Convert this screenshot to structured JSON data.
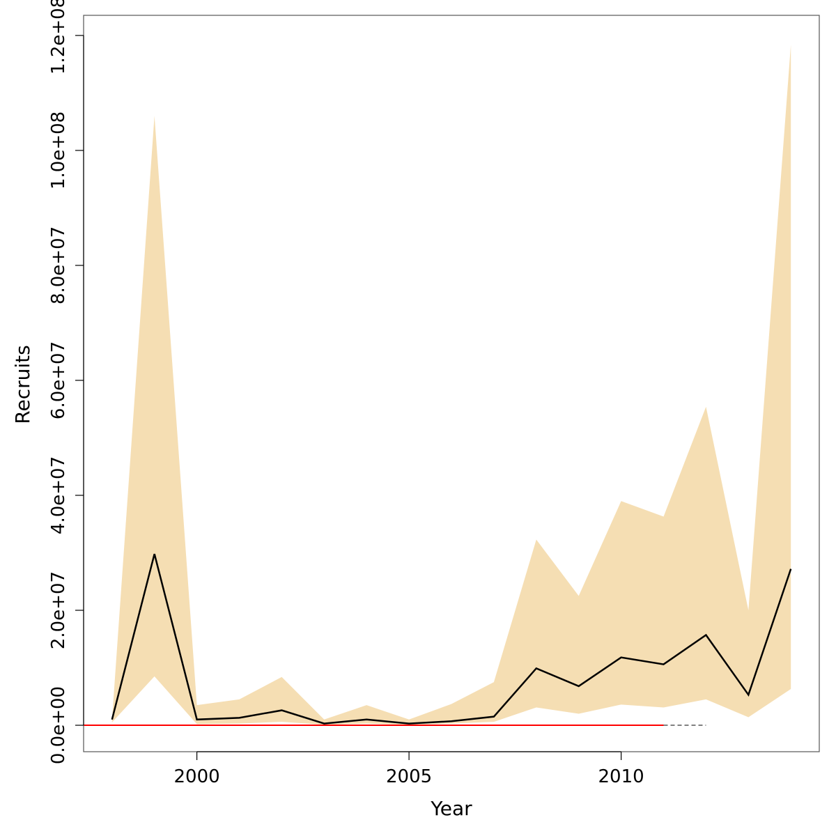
{
  "chart_data": {
    "type": "line",
    "title": "",
    "xlabel": "Year",
    "ylabel": "Recruits",
    "xlim": [
      1997.33,
      2014.67
    ],
    "ylim": [
      -4600000,
      123500000
    ],
    "x_ticks": [
      2000,
      2005,
      2010
    ],
    "x_tick_labels": [
      "2000",
      "2005",
      "2010"
    ],
    "y_ticks": [
      0,
      20000000,
      40000000,
      60000000,
      80000000,
      100000000,
      120000000
    ],
    "y_tick_labels": [
      "0.0e+00",
      "2.0e+07",
      "4.0e+07",
      "6.0e+07",
      "8.0e+07",
      "1.0e+08",
      "1.2e+08"
    ],
    "grid": false,
    "x": [
      1998,
      1999,
      2000,
      2001,
      2002,
      2003,
      2004,
      2005,
      2006,
      2007,
      2008,
      2009,
      2010,
      2011,
      2012,
      2013,
      2014
    ],
    "band": {
      "color": "#F5DEB3",
      "upper": [
        1000000,
        106000000,
        3500000,
        4500000,
        8400000,
        1000000,
        3500000,
        1000000,
        3700000,
        7500000,
        32300000,
        22500000,
        39000000,
        36300000,
        55400000,
        20000000,
        118400000
      ],
      "lower": [
        500000,
        8500000,
        200000,
        300000,
        600000,
        100000,
        300000,
        100000,
        300000,
        600000,
        3100000,
        2000000,
        3600000,
        3100000,
        4500000,
        1400000,
        6300000
      ]
    },
    "series": [
      {
        "color": "#000000",
        "values": [
          1000000,
          29800000,
          1000000,
          1300000,
          2600000,
          300000,
          1000000,
          300000,
          700000,
          1500000,
          9900000,
          6800000,
          11800000,
          10600000,
          15700000,
          5300000,
          27200000
        ]
      }
    ],
    "reference_lines": [
      {
        "color": "#FF0000",
        "x": [
          1997.33,
          2011
        ],
        "y": 0
      },
      {
        "color": "#808080",
        "style": "dashed",
        "x": [
          2011,
          2012
        ],
        "y": 0
      }
    ]
  }
}
